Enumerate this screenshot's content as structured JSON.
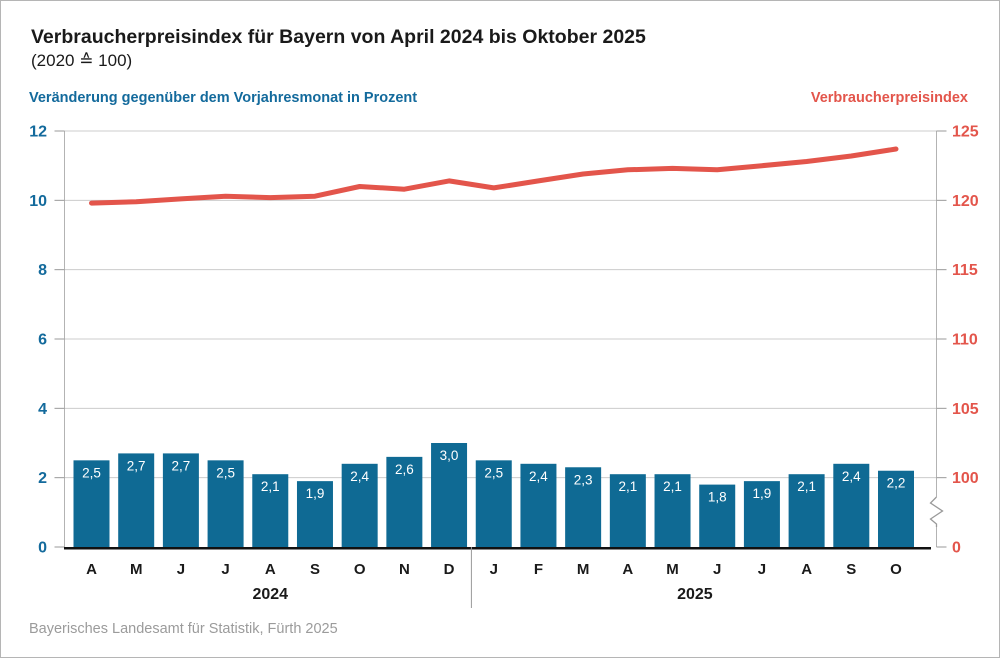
{
  "source": "Bayerisches Landesamt für Statistik, Fürth 2025",
  "colors": {
    "bar_blue": "#0f6a94",
    "axis_blue": "#136a9c",
    "line_red": "#e3554b",
    "axis_red": "#e3554b",
    "title_black": "#1a1a1a",
    "grid_gray": "#cccccc",
    "axis_gray": "#b3b3b3",
    "tick_gray": "#999999",
    "baseline_black": "#111111",
    "source_gray": "#9b9b9b",
    "bar_label_white": "#ffffff"
  },
  "chart_data": {
    "type": "bar+line",
    "title": "Verbraucherpreisindex für Bayern von April 2024 bis Oktober 2025",
    "subtitle": "(2020 ≙ 100)",
    "grid": true,
    "legend_position": "none",
    "categories": [
      "A",
      "M",
      "J",
      "J",
      "A",
      "S",
      "O",
      "N",
      "D",
      "J",
      "F",
      "M",
      "A",
      "M",
      "J",
      "J",
      "A",
      "S",
      "O"
    ],
    "year_groups": [
      {
        "label": "2024",
        "count": 9
      },
      {
        "label": "2025",
        "count": 10
      }
    ],
    "left_axis": {
      "title": "Veränderung gegenüber dem Vorjahresmonat in Prozent",
      "unit": "Prozent",
      "range": [
        0,
        12
      ],
      "ticks": [
        0,
        2,
        4,
        6,
        8,
        10,
        12
      ],
      "color": "#136a9c"
    },
    "right_axis": {
      "title": "Verbraucherpreisindex",
      "range_upper": [
        100,
        125
      ],
      "ticks_upper": [
        100,
        105,
        110,
        115,
        120,
        125
      ],
      "zero_label": "0",
      "has_break": true,
      "color": "#e3554b"
    },
    "series": [
      {
        "name": "Veränderung gegenüber dem Vorjahresmonat in Prozent",
        "type": "bar",
        "axis": "left",
        "color": "#0f6a94",
        "label_color": "#ffffff",
        "values": [
          2.5,
          2.7,
          2.7,
          2.5,
          2.1,
          1.9,
          2.4,
          2.6,
          3.0,
          2.5,
          2.4,
          2.3,
          2.1,
          2.1,
          1.8,
          1.9,
          2.1,
          2.4,
          2.2
        ],
        "value_labels": [
          "2,5",
          "2,7",
          "2,7",
          "2,5",
          "2,1",
          "1,9",
          "2,4",
          "2,6",
          "3,0",
          "2,5",
          "2,4",
          "2,3",
          "2,1",
          "2,1",
          "1,8",
          "1,9",
          "2,1",
          "2,4",
          "2,2"
        ]
      },
      {
        "name": "Verbraucherpreisindex",
        "type": "line",
        "axis": "right",
        "color": "#e3554b",
        "values": [
          119.8,
          119.9,
          120.1,
          120.3,
          120.2,
          120.3,
          121.0,
          120.8,
          121.4,
          120.9,
          121.4,
          121.9,
          122.2,
          122.3,
          122.2,
          122.5,
          122.8,
          123.2,
          123.7
        ]
      }
    ]
  }
}
